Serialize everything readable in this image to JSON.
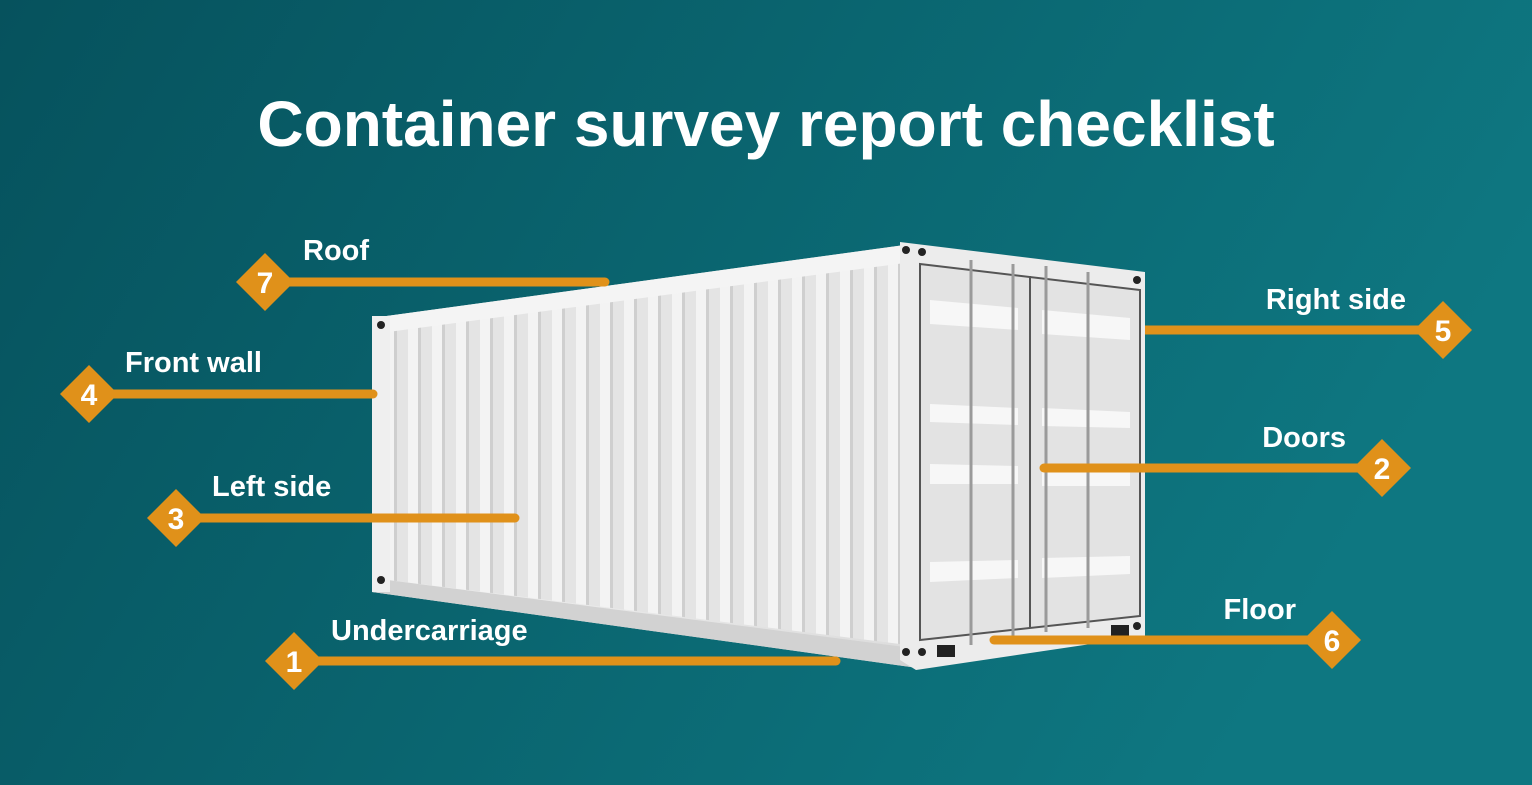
{
  "title": "Container survey report checklist",
  "colors": {
    "background_left": "#06525d",
    "background_right": "#0e7781",
    "accent": "#e0911a",
    "container": "#e6e6e6"
  },
  "callouts": [
    {
      "number": "1",
      "label": "Undercarriage"
    },
    {
      "number": "2",
      "label": "Doors"
    },
    {
      "number": "3",
      "label": "Left side"
    },
    {
      "number": "4",
      "label": "Front wall"
    },
    {
      "number": "5",
      "label": "Right side"
    },
    {
      "number": "6",
      "label": "Floor"
    },
    {
      "number": "7",
      "label": "Roof"
    }
  ]
}
